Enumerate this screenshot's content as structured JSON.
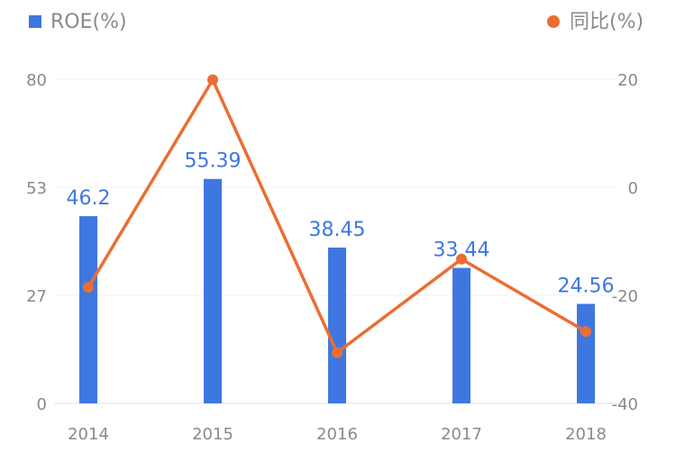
{
  "chart_data": {
    "type": "bar",
    "categories": [
      "2014",
      "2015",
      "2016",
      "2017",
      "2018"
    ],
    "series": [
      {
        "name": "ROE(%)",
        "type": "bar",
        "axis": "left",
        "color": "#3f77e0",
        "values": [
          46.2,
          55.39,
          38.45,
          33.44,
          24.56
        ],
        "labels": [
          "46.2",
          "55.39",
          "38.45",
          "33.44",
          "24.56"
        ]
      },
      {
        "name": "同比(%)",
        "type": "line",
        "axis": "right",
        "color": "#ea6e34",
        "values": [
          -18.5,
          19.9,
          -30.6,
          -13.3,
          -26.7
        ]
      }
    ],
    "y_left": {
      "range": [
        0,
        80
      ],
      "ticks": [
        "0",
        "27",
        "53",
        "80"
      ]
    },
    "y_right": {
      "range": [
        -40,
        20
      ],
      "ticks": [
        "-40",
        "-20",
        "0",
        "20"
      ]
    },
    "grid": true,
    "legend": {
      "placement": "top"
    }
  }
}
